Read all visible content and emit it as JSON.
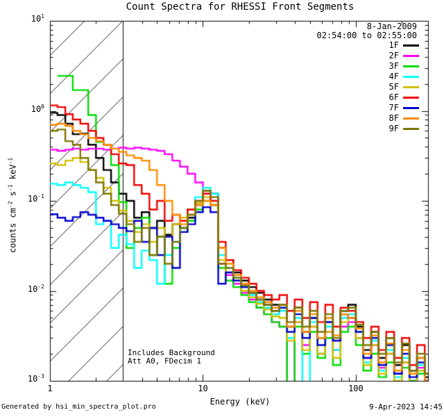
{
  "title": "Count Spectra for RHESSI Front Segments",
  "header": {
    "date": "8-Jan-2009",
    "time_range": "02:54:00 to 02:55:00"
  },
  "annotations": {
    "line1": "Includes Background",
    "line2": "Att A0, FDecim 1"
  },
  "footer": {
    "generated_by": "Generated by hsi_min_spectra_plot.pro",
    "timestamp": "9-Apr-2023 14:45"
  },
  "axes": {
    "xlabel": "Energy (keV)",
    "ylabel_text": "counts cm-2 s-1 keV-1",
    "ylabel_parts": [
      {
        "t": "counts cm"
      },
      {
        "sup": "-2"
      },
      {
        "t": " s"
      },
      {
        "sup": "-1"
      },
      {
        "t": " keV"
      },
      {
        "sup": "-1"
      }
    ],
    "x_tick_values": [
      1,
      10,
      100
    ],
    "x_tick_labels": [
      "1",
      "10",
      "100"
    ],
    "y_tick_exponents": [
      1,
      0,
      -1,
      -2,
      -3
    ]
  },
  "chart_data": {
    "type": "line",
    "subtype": "step-histogram",
    "title": "Count Spectra for RHESSI Front Segments",
    "xlabel": "Energy (keV)",
    "ylabel": "counts cm^-2 s^-1 keV^-1",
    "x_scale": "log",
    "y_scale": "log",
    "xlim": [
      1,
      296.5
    ],
    "ylim": [
      0.001,
      10
    ],
    "grid": false,
    "legend_position": "top-right",
    "hatch_region_kev": [
      1,
      3
    ],
    "energies_kev": [
      1.0,
      1.12,
      1.26,
      1.41,
      1.58,
      1.78,
      2.0,
      2.24,
      2.51,
      2.82,
      3.16,
      3.55,
      3.98,
      4.47,
      5.01,
      5.62,
      6.31,
      7.08,
      7.94,
      8.91,
      10.0,
      11.2,
      12.6,
      14.1,
      15.8,
      17.8,
      20.0,
      22.4,
      25.1,
      28.2,
      31.6,
      35.5,
      39.8,
      44.7,
      50.1,
      56.2,
      63.1,
      70.8,
      79.4,
      89.1,
      100,
      112,
      126,
      141,
      158,
      178,
      200,
      224,
      251,
      282
    ],
    "series": [
      {
        "name": "1F",
        "color": "#000000",
        "values": [
          0.95,
          0.9,
          0.72,
          0.55,
          0.56,
          0.42,
          0.3,
          0.22,
          0.16,
          0.12,
          0.1,
          0.065,
          0.075,
          0.05,
          0.06,
          0.042,
          0.055,
          0.05,
          0.065,
          0.09,
          0.13,
          0.12,
          0.03,
          0.022,
          0.016,
          0.013,
          0.011,
          0.0095,
          0.008,
          0.007,
          0.007,
          0.004,
          0.0065,
          0.0035,
          0.005,
          0.003,
          0.0045,
          0.0028,
          0.006,
          0.007,
          0.004,
          0.0022,
          0.0035,
          0.0018,
          0.003,
          0.0015,
          0.0025,
          0.0013,
          0.0018,
          0.0011
        ]
      },
      {
        "name": "2F",
        "color": "#FF00FF",
        "values": [
          0.37,
          0.36,
          0.37,
          0.38,
          0.37,
          0.38,
          0.38,
          0.37,
          0.38,
          0.39,
          0.38,
          0.39,
          0.38,
          0.37,
          0.36,
          0.33,
          0.28,
          0.24,
          0.2,
          0.16,
          0.12,
          0.09,
          0.02,
          0.015,
          0.012,
          0.0095,
          0.008,
          0.0065,
          0.0055,
          0.0045,
          0.004,
          0.0008,
          0.0045,
          0.0025,
          0.004,
          0.002,
          0.0035,
          0.0022,
          0.004,
          0.0045,
          0.003,
          0.0018,
          0.0025,
          0.0014,
          0.002,
          0.0012,
          0.0016,
          0.001,
          0.0014,
          0.001
        ]
      },
      {
        "name": "3F",
        "color": "#00DC00",
        "values": [
          null,
          2.45,
          2.45,
          1.7,
          1.7,
          0.9,
          0.45,
          0.42,
          0.25,
          0.097,
          0.03,
          0.05,
          0.065,
          0.025,
          0.04,
          0.012,
          0.03,
          0.045,
          0.06,
          0.08,
          0.1,
          0.09,
          0.018,
          0.013,
          0.011,
          0.009,
          0.0075,
          0.0065,
          0.0055,
          0.0045,
          0.004,
          0.0009,
          0.004,
          0.002,
          0.0035,
          0.0018,
          0.003,
          0.0015,
          0.0035,
          0.004,
          0.0025,
          0.0013,
          0.002,
          0.0011,
          0.0016,
          0.0009,
          0.0014,
          0.001,
          0.0012,
          0.0009
        ]
      },
      {
        "name": "4F",
        "color": "#00FFFF",
        "values": [
          0.155,
          0.15,
          0.16,
          0.15,
          0.14,
          0.125,
          0.055,
          0.06,
          0.03,
          0.042,
          0.033,
          0.018,
          0.028,
          0.022,
          0.012,
          0.025,
          0.035,
          0.05,
          0.08,
          0.11,
          0.14,
          0.12,
          0.025,
          0.018,
          0.014,
          0.011,
          0.009,
          0.0075,
          0.0065,
          0.0055,
          0.006,
          0.003,
          0.005,
          0.0009,
          0.0045,
          0.002,
          0.004,
          0.0022,
          0.005,
          0.0055,
          0.0035,
          0.0016,
          0.0028,
          0.0013,
          0.0022,
          0.0011,
          0.0018,
          0.0009,
          0.0015,
          0.001
        ]
      },
      {
        "name": "5F",
        "color": "#D2C000",
        "values": [
          0.26,
          0.25,
          0.28,
          0.3,
          0.27,
          0.22,
          0.18,
          0.14,
          0.1,
          0.078,
          0.06,
          0.045,
          0.055,
          0.035,
          0.05,
          0.04,
          0.055,
          0.065,
          0.08,
          0.095,
          0.11,
          0.09,
          0.022,
          0.016,
          0.013,
          0.01,
          0.0085,
          0.0072,
          0.0062,
          0.0052,
          0.005,
          0.0028,
          0.0045,
          0.0022,
          0.004,
          0.002,
          0.0035,
          0.0018,
          0.0045,
          0.005,
          0.003,
          0.0015,
          0.0025,
          0.0012,
          0.002,
          0.001,
          0.0016,
          0.0009,
          0.0013,
          0.001
        ]
      },
      {
        "name": "6F",
        "color": "#EF0000",
        "values": [
          1.15,
          1.1,
          0.92,
          0.8,
          0.72,
          0.6,
          0.5,
          0.42,
          0.33,
          0.26,
          0.25,
          0.15,
          0.12,
          0.08,
          0.1,
          0.06,
          0.07,
          0.06,
          0.08,
          0.1,
          0.12,
          0.1,
          0.035,
          0.022,
          0.017,
          0.014,
          0.012,
          0.01,
          0.009,
          0.008,
          0.009,
          0.006,
          0.008,
          0.005,
          0.0075,
          0.0045,
          0.007,
          0.004,
          0.0065,
          0.006,
          0.0045,
          0.003,
          0.004,
          0.0022,
          0.0035,
          0.0018,
          0.003,
          0.0015,
          0.0025,
          0.0012
        ]
      },
      {
        "name": "7F",
        "color": "#0000CC",
        "values": [
          0.071,
          0.065,
          0.06,
          0.066,
          0.075,
          0.07,
          0.065,
          0.06,
          0.055,
          0.05,
          0.046,
          0.06,
          0.035,
          0.05,
          0.025,
          0.04,
          0.018,
          0.045,
          0.055,
          0.075,
          0.085,
          0.075,
          0.012,
          0.016,
          0.013,
          0.011,
          0.0095,
          0.008,
          0.007,
          0.006,
          0.0065,
          0.0035,
          0.0055,
          0.003,
          0.005,
          0.0025,
          0.0045,
          0.0028,
          0.0055,
          0.005,
          0.0035,
          0.0018,
          0.003,
          0.0015,
          0.0025,
          0.0012,
          0.002,
          0.0011,
          0.0016,
          0.001
        ]
      },
      {
        "name": "8F",
        "color": "#FF8C00",
        "values": [
          0.7,
          0.72,
          0.68,
          0.6,
          0.55,
          0.5,
          0.46,
          0.42,
          0.38,
          0.35,
          0.32,
          0.3,
          0.28,
          0.22,
          0.15,
          0.1,
          0.07,
          0.055,
          0.07,
          0.09,
          0.1,
          0.09,
          0.03,
          0.02,
          0.015,
          0.012,
          0.01,
          0.0085,
          0.0075,
          0.0065,
          0.007,
          0.004,
          0.006,
          0.0035,
          0.0055,
          0.003,
          0.005,
          0.0032,
          0.0055,
          0.005,
          0.0038,
          0.002,
          0.0032,
          0.0016,
          0.0026,
          0.0013,
          0.0022,
          0.0012,
          0.0018,
          0.001
        ]
      },
      {
        "name": "9F",
        "color": "#7E7500",
        "values": [
          0.6,
          0.62,
          0.46,
          0.42,
          0.3,
          0.22,
          0.16,
          0.12,
          0.09,
          0.072,
          0.055,
          0.035,
          0.05,
          0.025,
          0.04,
          0.02,
          0.035,
          0.05,
          0.07,
          0.1,
          0.13,
          0.11,
          0.02,
          0.018,
          0.014,
          0.0115,
          0.0095,
          0.008,
          0.007,
          0.006,
          0.007,
          0.0045,
          0.0065,
          0.004,
          0.006,
          0.0035,
          0.0055,
          0.003,
          0.006,
          0.0065,
          0.0042,
          0.0025,
          0.0035,
          0.002,
          0.003,
          0.0016,
          0.0026,
          0.0013,
          0.002,
          0.0012
        ]
      }
    ]
  }
}
